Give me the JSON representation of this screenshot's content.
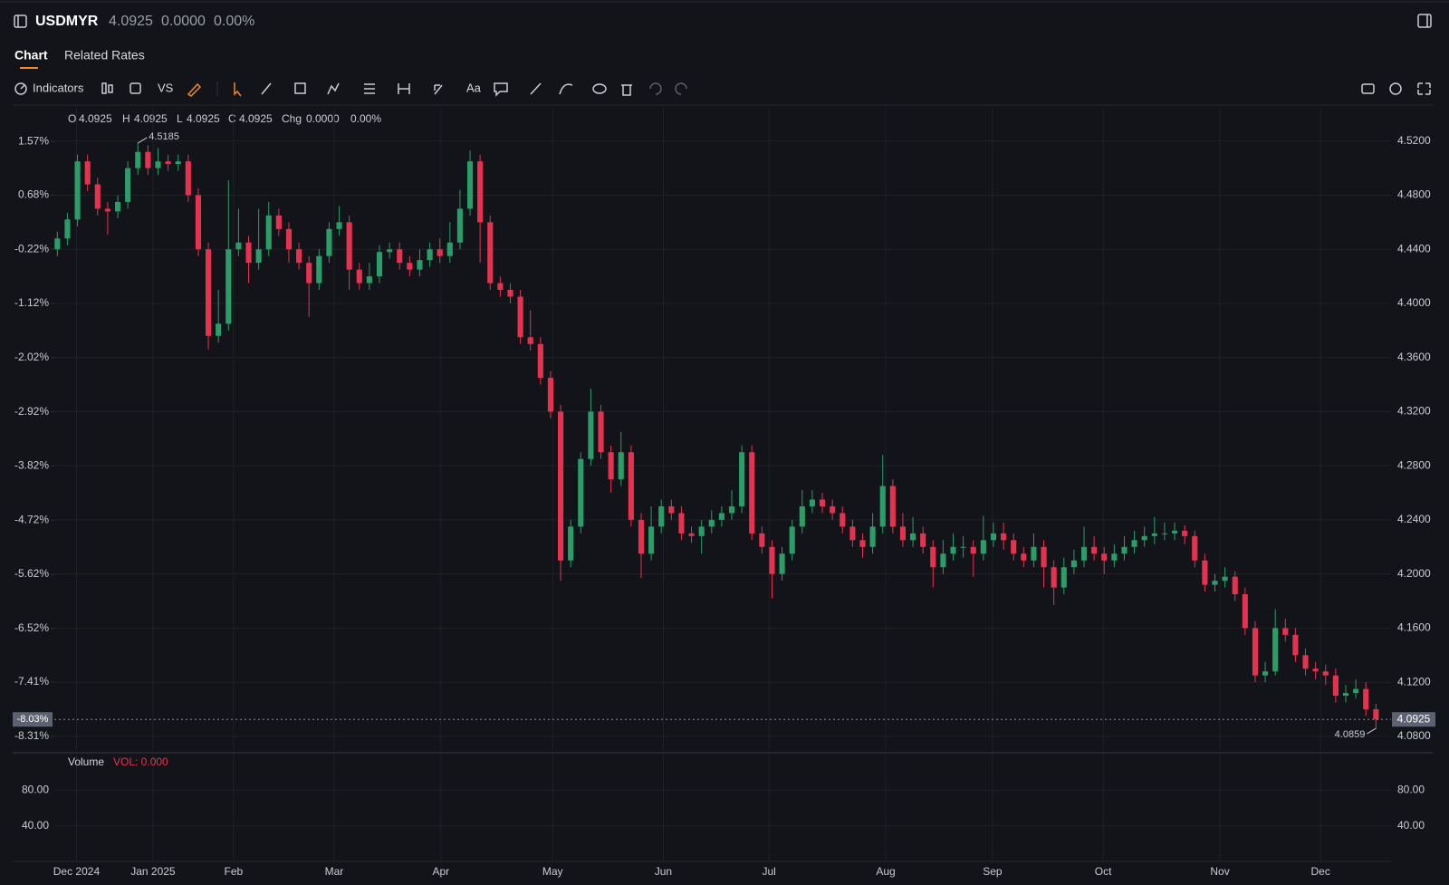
{
  "header": {
    "symbol": "USDMYR",
    "price": "4.0925",
    "change": "0.0000",
    "change_pct": "0.00%"
  },
  "tabs": [
    "Chart",
    "Related Rates"
  ],
  "toolbar": {
    "indicators": "Indicators",
    "vs": "VS",
    "text_tool": "Aa"
  },
  "legend": {
    "items": [
      {
        "label": "O",
        "value": "4.0925"
      },
      {
        "label": "H",
        "value": "4.0925"
      },
      {
        "label": "L",
        "value": "4.0925"
      },
      {
        "label": "C",
        "value": "4.0925"
      },
      {
        "label": "Chg",
        "value": "0.0000"
      }
    ],
    "change_pct": "0.00%"
  },
  "chart_data": {
    "type": "candlestick",
    "up_color": "#2a9d68",
    "down_color": "#e5334f",
    "grid": true,
    "open": [
      4.44,
      4.448,
      4.462,
      4.505,
      4.488,
      4.47,
      4.468,
      4.475,
      4.5,
      4.512,
      4.5,
      4.505,
      4.503,
      4.505,
      4.48,
      4.44,
      4.376,
      4.385,
      4.44,
      4.445,
      4.43,
      4.44,
      4.465,
      4.455,
      4.44,
      4.43,
      4.415,
      4.435,
      4.455,
      4.46,
      4.425,
      4.415,
      4.42,
      4.438,
      4.44,
      4.43,
      4.425,
      4.432,
      4.44,
      4.435,
      4.445,
      4.47,
      4.505,
      4.46,
      4.415,
      4.41,
      4.405,
      4.375,
      4.37,
      4.345,
      4.32,
      4.21,
      4.235,
      4.285,
      4.32,
      4.29,
      4.27,
      4.29,
      4.24,
      4.215,
      4.235,
      4.25,
      4.245,
      4.23,
      4.228,
      4.235,
      4.24,
      4.245,
      4.25,
      4.29,
      4.23,
      4.22,
      4.2,
      4.215,
      4.235,
      4.25,
      4.255,
      4.25,
      4.245,
      4.235,
      4.225,
      4.22,
      4.235,
      4.265,
      4.235,
      4.225,
      4.23,
      4.22,
      4.205,
      4.215,
      4.22,
      4.22,
      4.215,
      4.225,
      4.23,
      4.225,
      4.215,
      4.21,
      4.22,
      4.205,
      4.19,
      4.205,
      4.21,
      4.22,
      4.215,
      4.21,
      4.215,
      4.22,
      4.225,
      4.228,
      4.23,
      4.23,
      4.232,
      4.228,
      4.21,
      4.192,
      4.195,
      4.198,
      4.185,
      4.16,
      4.125,
      4.128,
      4.16,
      4.155,
      4.14,
      4.13,
      4.128,
      4.125,
      4.11,
      4.112,
      4.115,
      4.1
    ],
    "high": [
      4.453,
      4.467,
      4.51,
      4.51,
      4.493,
      4.475,
      4.48,
      4.505,
      4.5185,
      4.517,
      4.515,
      4.51,
      4.51,
      4.51,
      4.485,
      4.445,
      4.41,
      4.491,
      4.47,
      4.45,
      4.47,
      4.475,
      4.47,
      4.46,
      4.445,
      4.435,
      4.44,
      4.46,
      4.472,
      4.465,
      4.43,
      4.43,
      4.443,
      4.445,
      4.445,
      4.435,
      4.44,
      4.445,
      4.448,
      4.46,
      4.484,
      4.513,
      4.51,
      4.465,
      4.42,
      4.415,
      4.41,
      4.395,
      4.375,
      4.35,
      4.325,
      4.24,
      4.29,
      4.337,
      4.325,
      4.295,
      4.305,
      4.295,
      4.245,
      4.25,
      4.255,
      4.255,
      4.25,
      4.235,
      4.24,
      4.247,
      4.25,
      4.262,
      4.295,
      4.295,
      4.235,
      4.225,
      4.22,
      4.24,
      4.262,
      4.262,
      4.26,
      4.255,
      4.25,
      4.24,
      4.23,
      4.245,
      4.288,
      4.27,
      4.245,
      4.242,
      4.235,
      4.225,
      4.225,
      4.23,
      4.228,
      4.225,
      4.243,
      4.238,
      4.238,
      4.23,
      4.22,
      4.23,
      4.225,
      4.21,
      4.212,
      4.218,
      4.235,
      4.228,
      4.22,
      4.222,
      4.228,
      4.232,
      4.235,
      4.242,
      4.238,
      4.238,
      4.236,
      4.232,
      4.215,
      4.2,
      4.205,
      4.202,
      4.19,
      4.165,
      4.135,
      4.174,
      4.167,
      4.16,
      4.145,
      4.135,
      4.133,
      4.13,
      4.118,
      4.122,
      4.12,
      4.104
    ],
    "low": [
      4.435,
      4.443,
      4.457,
      4.483,
      4.465,
      4.451,
      4.463,
      4.47,
      4.495,
      4.495,
      4.495,
      4.498,
      4.498,
      4.475,
      4.435,
      4.366,
      4.371,
      4.38,
      4.435,
      4.415,
      4.425,
      4.435,
      4.45,
      4.43,
      4.425,
      4.39,
      4.41,
      4.43,
      4.45,
      4.41,
      4.41,
      4.41,
      4.415,
      4.433,
      4.425,
      4.42,
      4.42,
      4.427,
      4.43,
      4.43,
      4.44,
      4.465,
      4.43,
      4.41,
      4.405,
      4.4,
      4.37,
      4.365,
      4.34,
      4.315,
      4.195,
      4.205,
      4.23,
      4.28,
      4.285,
      4.26,
      4.265,
      4.235,
      4.197,
      4.21,
      4.23,
      4.24,
      4.225,
      4.223,
      4.215,
      4.23,
      4.235,
      4.24,
      4.245,
      4.225,
      4.215,
      4.182,
      4.195,
      4.21,
      4.23,
      4.245,
      4.245,
      4.24,
      4.23,
      4.22,
      4.212,
      4.215,
      4.23,
      4.23,
      4.22,
      4.22,
      4.215,
      4.19,
      4.2,
      4.21,
      4.212,
      4.198,
      4.21,
      4.22,
      4.218,
      4.21,
      4.205,
      4.205,
      4.19,
      4.177,
      4.185,
      4.2,
      4.205,
      4.21,
      4.2,
      4.205,
      4.21,
      4.215,
      4.22,
      4.222,
      4.225,
      4.225,
      4.222,
      4.205,
      4.187,
      4.187,
      4.19,
      4.18,
      4.155,
      4.12,
      4.12,
      4.125,
      4.15,
      4.135,
      4.125,
      4.122,
      4.118,
      4.105,
      4.105,
      4.108,
      4.095,
      4.0859
    ],
    "close": [
      4.448,
      4.462,
      4.505,
      4.488,
      4.47,
      4.468,
      4.475,
      4.5,
      4.512,
      4.5,
      4.505,
      4.503,
      4.505,
      4.48,
      4.44,
      4.376,
      4.385,
      4.44,
      4.445,
      4.43,
      4.44,
      4.465,
      4.455,
      4.44,
      4.43,
      4.415,
      4.435,
      4.455,
      4.46,
      4.425,
      4.415,
      4.42,
      4.438,
      4.44,
      4.43,
      4.425,
      4.432,
      4.44,
      4.435,
      4.445,
      4.47,
      4.505,
      4.46,
      4.415,
      4.41,
      4.405,
      4.375,
      4.37,
      4.345,
      4.32,
      4.21,
      4.235,
      4.285,
      4.32,
      4.29,
      4.27,
      4.29,
      4.24,
      4.215,
      4.235,
      4.25,
      4.245,
      4.23,
      4.228,
      4.235,
      4.24,
      4.245,
      4.25,
      4.29,
      4.23,
      4.22,
      4.2,
      4.215,
      4.235,
      4.25,
      4.255,
      4.25,
      4.245,
      4.235,
      4.225,
      4.22,
      4.235,
      4.265,
      4.235,
      4.225,
      4.23,
      4.22,
      4.205,
      4.215,
      4.22,
      4.22,
      4.215,
      4.225,
      4.23,
      4.225,
      4.215,
      4.21,
      4.22,
      4.205,
      4.19,
      4.205,
      4.21,
      4.22,
      4.215,
      4.21,
      4.215,
      4.22,
      4.225,
      4.228,
      4.23,
      4.23,
      4.232,
      4.228,
      4.21,
      4.192,
      4.195,
      4.198,
      4.185,
      4.16,
      4.125,
      4.128,
      4.16,
      4.155,
      4.14,
      4.13,
      4.128,
      4.125,
      4.11,
      4.112,
      4.115,
      4.1,
      4.0925
    ],
    "xlim": [
      -0.3,
      132.5
    ],
    "xticks": [
      {
        "value": 1.9,
        "label": "Dec 2024"
      },
      {
        "value": 9.5,
        "label": "Jan 2025"
      },
      {
        "value": 17.5,
        "label": "Feb"
      },
      {
        "value": 27.5,
        "label": "Mar"
      },
      {
        "value": 38.1,
        "label": "Apr"
      },
      {
        "value": 49.2,
        "label": "May"
      },
      {
        "value": 60.2,
        "label": "Jun"
      },
      {
        "value": 70.7,
        "label": "Jul"
      },
      {
        "value": 82.3,
        "label": "Aug"
      },
      {
        "value": 92.9,
        "label": "Sep"
      },
      {
        "value": 103.9,
        "label": "Oct"
      },
      {
        "value": 115.5,
        "label": "Nov"
      },
      {
        "value": 125.5,
        "label": "Dec"
      }
    ],
    "ylim": [
      4.0692,
      4.5446
    ],
    "yticks": [
      {
        "value": 4.52,
        "label": "4.5200"
      },
      {
        "value": 4.48,
        "label": "4.4800"
      },
      {
        "value": 4.44,
        "label": "4.4400"
      },
      {
        "value": 4.4,
        "label": "4.4000"
      },
      {
        "value": 4.36,
        "label": "4.3600"
      },
      {
        "value": 4.32,
        "label": "4.3200"
      },
      {
        "value": 4.28,
        "label": "4.2800"
      },
      {
        "value": 4.24,
        "label": "4.2400"
      },
      {
        "value": 4.2,
        "label": "4.2000"
      },
      {
        "value": 4.16,
        "label": "4.1600"
      },
      {
        "value": 4.12,
        "label": "4.1200"
      },
      {
        "value": 4.08,
        "label": "4.0800"
      }
    ],
    "y2lim": [
      -8.553,
      2.13
    ],
    "y2ticks": [
      {
        "value": 1.57,
        "label": "1.57%"
      },
      {
        "value": 0.68,
        "label": "0.68%"
      },
      {
        "value": -0.22,
        "label": "-0.22%"
      },
      {
        "value": -1.12,
        "label": "-1.12%"
      },
      {
        "value": -2.02,
        "label": "-2.02%"
      },
      {
        "value": -2.92,
        "label": "-2.92%"
      },
      {
        "value": -3.82,
        "label": "-3.82%"
      },
      {
        "value": -4.72,
        "label": "-4.72%"
      },
      {
        "value": -5.62,
        "label": "-5.62%"
      },
      {
        "value": -6.52,
        "label": "-6.52%"
      },
      {
        "value": -7.41,
        "label": "-7.41%"
      },
      {
        "value": -8.31,
        "label": "-8.31%"
      }
    ],
    "last_price": {
      "value": 4.0925,
      "label": "4.0925"
    },
    "last_pct": {
      "value": -8.03,
      "label": "-8.03%"
    },
    "high_marker": 4.5185,
    "low_marker": 4.0859,
    "volume": {
      "title": "Volume",
      "indicator": "VOL: 0.000",
      "indicator_color": "#e5334f",
      "ylim": [
        0,
        120
      ],
      "yticks": [
        {
          "value": 80,
          "label": "80.00"
        },
        {
          "value": 40,
          "label": "40.00"
        }
      ]
    }
  }
}
